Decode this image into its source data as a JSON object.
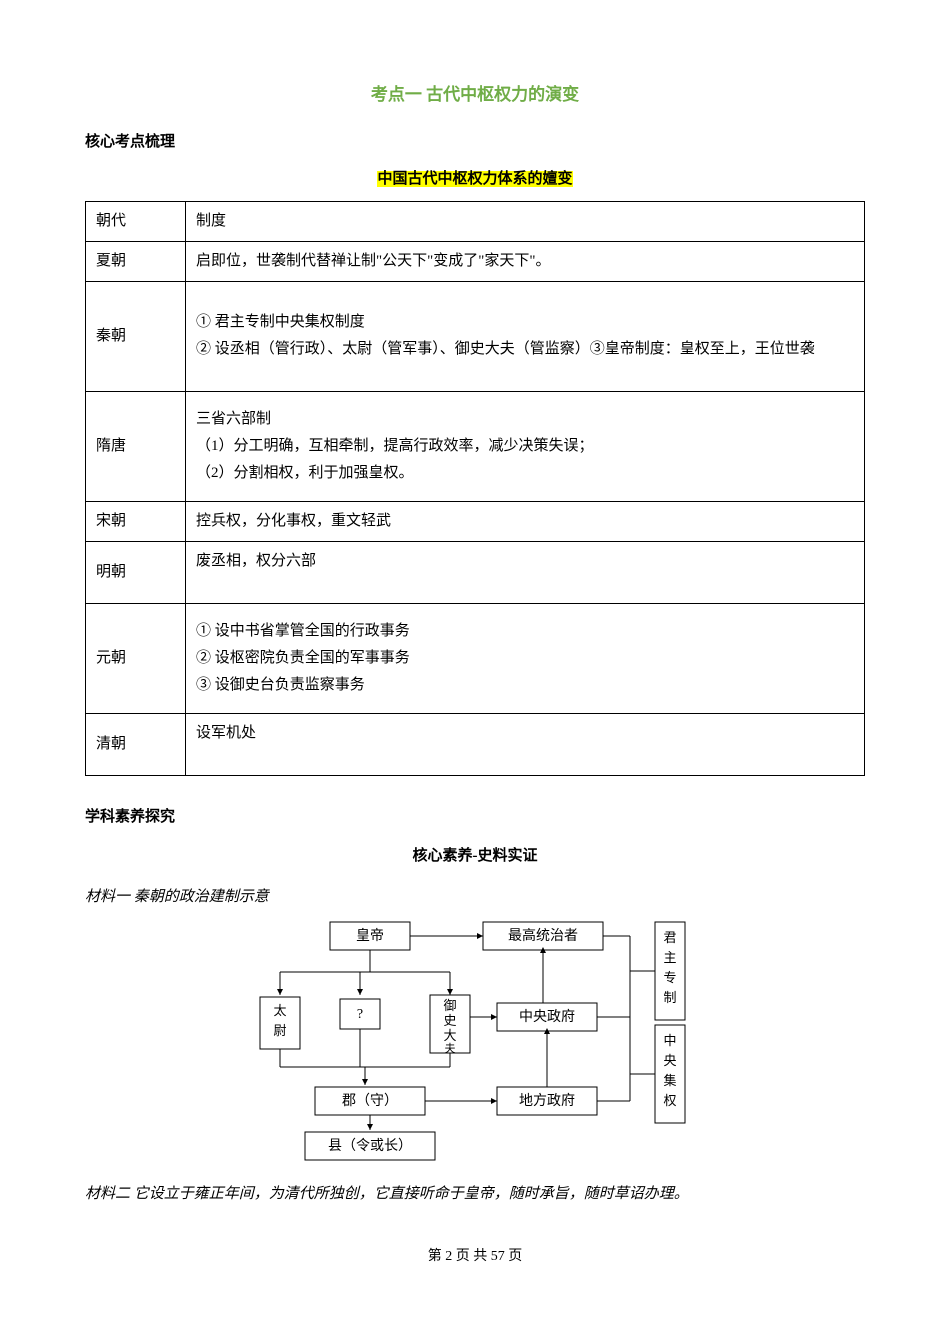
{
  "title_main": "考点一  古代中枢权力的演变",
  "heading1": "核心考点梳理",
  "subtitle_hl": "中国古代中枢权力体系的嬗变",
  "table": {
    "header": {
      "c1": "朝代",
      "c2": "制度"
    },
    "rows": [
      {
        "c1": "夏朝",
        "c2": "启即位，世袭制代替禅让制\"公天下\"变成了\"家天下\"。"
      },
      {
        "c1": "秦朝",
        "c2": "① 君主专制中央集权制度\n② 设丞相（管行政）、太尉（管军事）、御史大夫（管监察）③皇帝制度：皇权至上，王位世袭"
      },
      {
        "c1": "隋唐",
        "c2": "三省六部制\n（1）分工明确，互相牵制，提高行政效率，减少决策失误；\n（2）分割相权，利于加强皇权。"
      },
      {
        "c1": "宋朝",
        "c2": "控兵权，分化事权，重文轻武"
      },
      {
        "c1": "明朝",
        "c2": "废丞相，权分六部"
      },
      {
        "c1": "元朝",
        "c2": "① 设中书省掌管全国的行政事务\n② 设枢密院负责全国的军事事务\n③ 设御史台负责监察事务"
      },
      {
        "c1": "清朝",
        "c2": "设军机处"
      }
    ]
  },
  "heading2": "学科素养探究",
  "center_bold": "核心素养-史料实证",
  "material1": "材料一    秦朝的政治建制示意",
  "diagram": {
    "emperor": "皇帝",
    "top_ruler": "最高统治者",
    "taiwei": "太尉",
    "q": "?",
    "yushi": "御史大夫",
    "central_gov": "中央政府",
    "jun": "郡（守）",
    "local_gov": "地方政府",
    "xian": "县（令或长）",
    "v1": "君主专制",
    "v2": "中央集权"
  },
  "material2": "材料二    它设立于雍正年间，为清代所独创，它直接听命于皇帝，随时承旨，随时草诏办理。",
  "footer": "第 2 页 共 57 页"
}
